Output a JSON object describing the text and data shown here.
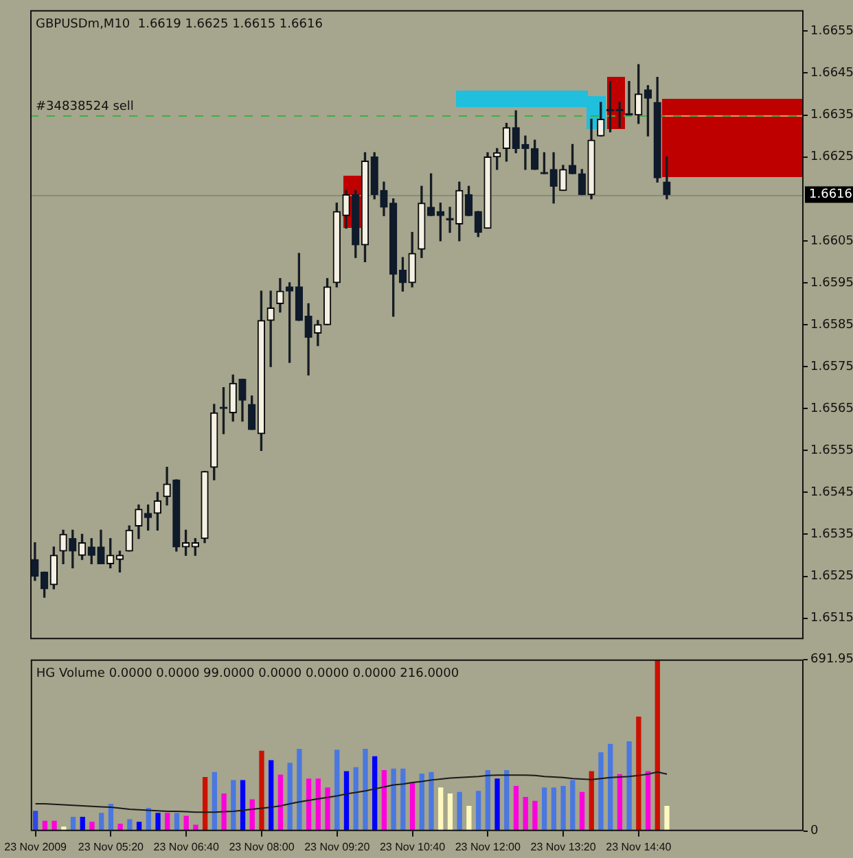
{
  "chart_data": [
    {
      "type": "candlestick",
      "title": "GBPUSDm,M10  1.6619 1.6625 1.6615 1.6616",
      "categories": [
        null,
        null,
        null,
        null,
        null,
        null,
        null,
        null,
        null,
        null,
        null,
        null,
        null,
        null,
        null,
        null,
        null,
        null,
        null,
        null,
        null,
        null,
        null,
        null,
        null,
        null,
        null,
        null,
        null,
        null,
        null,
        null,
        null,
        null,
        null,
        null,
        null,
        null,
        null,
        null,
        null,
        null,
        null,
        null,
        null,
        null,
        null,
        null,
        null,
        null,
        null,
        null,
        null,
        null,
        null,
        null,
        null,
        null,
        null,
        null,
        null,
        null,
        null,
        null,
        null,
        null,
        null,
        null,
        null,
        null,
        null,
        null,
        null,
        null,
        null,
        null,
        null,
        null,
        null,
        null,
        null,
        null
      ],
      "ohlc": [
        [
          1.6529,
          1.6533,
          1.6524,
          1.6525
        ],
        [
          1.6526,
          1.6526,
          1.652,
          1.6522
        ],
        [
          1.6523,
          1.6532,
          1.6522,
          1.653
        ],
        [
          1.6531,
          1.6536,
          1.6528,
          1.6535
        ],
        [
          1.6534,
          1.6536,
          1.6527,
          1.6531
        ],
        [
          1.653,
          1.6535,
          1.6529,
          1.6533
        ],
        [
          1.6532,
          1.6534,
          1.6528,
          1.653
        ],
        [
          1.6532,
          1.6536,
          1.6528,
          1.6528
        ],
        [
          1.6528,
          1.6534,
          1.6527,
          1.653
        ],
        [
          1.6529,
          1.6531,
          1.6526,
          1.653
        ],
        [
          1.6531,
          1.6537,
          1.6531,
          1.6536
        ],
        [
          1.6537,
          1.6542,
          1.6534,
          1.6541
        ],
        [
          1.654,
          1.6542,
          1.6536,
          1.6539
        ],
        [
          1.654,
          1.6545,
          1.6536,
          1.6543
        ],
        [
          1.6544,
          1.6551,
          1.6542,
          1.6547
        ],
        [
          1.6548,
          1.6548,
          1.6531,
          1.6532
        ],
        [
          1.6532,
          1.6536,
          1.653,
          1.6533
        ],
        [
          1.6532,
          1.6534,
          1.653,
          1.6533
        ],
        [
          1.6534,
          1.655,
          1.6533,
          1.655
        ],
        [
          1.6551,
          1.6566,
          1.6548,
          1.6564
        ],
        [
          1.6565,
          1.657,
          1.6559,
          1.6565
        ],
        [
          1.6564,
          1.6573,
          1.6562,
          1.6571
        ],
        [
          1.6572,
          1.6572,
          1.6562,
          1.6567
        ],
        [
          1.6566,
          1.6568,
          1.656,
          1.656
        ],
        [
          1.6559,
          1.6593,
          1.6555,
          1.6586
        ],
        [
          1.6586,
          1.6593,
          1.6575,
          1.6589
        ],
        [
          1.659,
          1.6596,
          1.6588,
          1.6593
        ],
        [
          1.6594,
          1.6595,
          1.6576,
          1.6593
        ],
        [
          1.6594,
          1.6602,
          1.6586,
          1.6586
        ],
        [
          1.6587,
          1.659,
          1.6573,
          1.6582
        ],
        [
          1.6583,
          1.6586,
          1.658,
          1.6585
        ],
        [
          1.6585,
          1.6596,
          1.6585,
          1.6594
        ],
        [
          1.6595,
          1.6614,
          1.6594,
          1.6612
        ],
        [
          1.6611,
          1.6617,
          1.6608,
          1.6616
        ],
        [
          1.6616,
          1.6617,
          1.6601,
          1.6604
        ],
        [
          1.6604,
          1.6626,
          1.66,
          1.6624
        ],
        [
          1.6625,
          1.6626,
          1.6615,
          1.6616
        ],
        [
          1.6617,
          1.6619,
          1.6611,
          1.6613
        ],
        [
          1.6614,
          1.6615,
          1.6587,
          1.6597
        ],
        [
          1.6598,
          1.6601,
          1.6593,
          1.6595
        ],
        [
          1.6595,
          1.6607,
          1.6594,
          1.6602
        ],
        [
          1.6603,
          1.6618,
          1.6601,
          1.6614
        ],
        [
          1.6613,
          1.6621,
          1.6611,
          1.6611
        ],
        [
          1.6612,
          1.6614,
          1.6605,
          1.6611
        ],
        [
          1.661,
          1.6613,
          1.6607,
          1.661
        ],
        [
          1.6609,
          1.6619,
          1.6605,
          1.6617
        ],
        [
          1.6616,
          1.6618,
          1.6611,
          1.6611
        ],
        [
          1.6612,
          1.6612,
          1.6606,
          1.6607
        ],
        [
          1.6608,
          1.6626,
          1.6608,
          1.6625
        ],
        [
          1.6625,
          1.6627,
          1.6622,
          1.6626
        ],
        [
          1.6627,
          1.6633,
          1.6624,
          1.6632
        ],
        [
          1.6632,
          1.6636,
          1.6626,
          1.6627
        ],
        [
          1.6628,
          1.663,
          1.6622,
          1.6627
        ],
        [
          1.6627,
          1.6629,
          1.6622,
          1.6622
        ],
        [
          1.6621,
          1.6626,
          1.6621,
          1.6621
        ],
        [
          1.6622,
          1.6626,
          1.6614,
          1.6618
        ],
        [
          1.6617,
          1.6623,
          1.6617,
          1.6622
        ],
        [
          1.6623,
          1.6628,
          1.6621,
          1.6621
        ],
        [
          1.6621,
          1.6622,
          1.6616,
          1.6616
        ],
        [
          1.6616,
          1.6634,
          1.6615,
          1.6629
        ],
        [
          1.663,
          1.6638,
          1.663,
          1.6634
        ],
        [
          1.6636,
          1.6643,
          1.6631,
          1.6636
        ],
        [
          1.6636,
          1.6638,
          1.6632,
          1.6636
        ],
        [
          1.6635,
          1.6643,
          1.6635,
          1.6635
        ],
        [
          1.6635,
          1.6647,
          1.6633,
          1.664
        ],
        [
          1.6641,
          1.6642,
          1.663,
          1.6639
        ],
        [
          1.6638,
          1.6644,
          1.6619,
          1.662
        ],
        [
          1.6619,
          1.6625,
          1.6615,
          1.6616
        ],
        null,
        null,
        null,
        null,
        null,
        null,
        null,
        null,
        null,
        null,
        null,
        null,
        null,
        null
      ],
      "ylim": [
        1.651,
        1.666
      ],
      "yticks": [
        1.6515,
        1.6525,
        1.6535,
        1.6545,
        1.6555,
        1.6565,
        1.6575,
        1.6585,
        1.6595,
        1.6605,
        1.6625,
        1.6635,
        1.6645,
        1.6655
      ],
      "ref_lines": [
        {
          "axis": "y",
          "value": 1.6635,
          "label": "#34838524 sell",
          "color": "#3cb043",
          "line_style": "dashed"
        },
        {
          "axis": "y",
          "value": 1.6616,
          "label": "1.6616",
          "color": "#7f8f80",
          "line_style": "solid"
        }
      ],
      "tick_labels": "y"
    },
    {
      "type": "bar",
      "title": "HG Volume 0.0000 0.0000 99.0000 0.0000 0.0000 0.0000 216.0000",
      "categories": [
        "23 Nov 2009",
        null,
        null,
        null,
        null,
        null,
        null,
        null,
        "23 Nov 05:20",
        null,
        null,
        null,
        null,
        null,
        null,
        null,
        "23 Nov 06:40",
        null,
        null,
        null,
        null,
        null,
        null,
        null,
        "23 Nov 08:00",
        null,
        null,
        null,
        null,
        null,
        null,
        null,
        "23 Nov 09:20",
        null,
        null,
        null,
        null,
        null,
        null,
        null,
        "23 Nov 10:40",
        null,
        null,
        null,
        null,
        null,
        null,
        null,
        "23 Nov 12:00",
        null,
        null,
        null,
        null,
        null,
        null,
        null,
        "23 Nov 13:20",
        null,
        null,
        null,
        null,
        null,
        null,
        null,
        "23 Nov 14:40",
        null,
        null,
        null,
        null,
        null,
        null,
        null,
        null,
        null,
        null,
        null,
        null,
        null,
        null,
        null,
        null,
        null
      ],
      "series": [
        {
          "type": "bar",
          "values": [
            80,
            40,
            40,
            16,
            56,
            56,
            36,
            72,
            108,
            28,
            46,
            36,
            92,
            72,
            72,
            72,
            60,
            24,
            216,
            236,
            150,
            204,
            204,
            126,
            322,
            284,
            226,
            274,
            330,
            210,
            210,
            174,
            326,
            240,
            256,
            330,
            300,
            244,
            250,
            250,
            194,
            230,
            236,
            174,
            150,
            156,
            100,
            160,
            244,
            210,
            244,
            180,
            136,
            120,
            174,
            174,
            180,
            204,
            156,
            240,
            316,
            350,
            228,
            360,
            460,
            240,
            690,
            100,
            null,
            null,
            null,
            null,
            null,
            null,
            null,
            null,
            null,
            null,
            null,
            null,
            null,
            null
          ],
          "colors": [
            "#2f48e8",
            "#ff00dd",
            "#ff00dd",
            "#fff8c0",
            "#4a78e0",
            "#0000ff",
            "#ff00dd",
            "#4a78e0",
            "#4a78e0",
            "#ff00dd",
            "#4a78e0",
            "#0000ff",
            "#4a78e0",
            "#0000ff",
            "#ff00dd",
            "#4a78e0",
            "#ff00dd",
            "#ff00dd",
            "#cc1100",
            "#4a78e0",
            "#ff00dd",
            "#4a78e0",
            "#0000ff",
            "#ff00dd",
            "#cc1100",
            "#0000ff",
            "#ff00dd",
            "#4a78e0",
            "#4a78e0",
            "#ff00dd",
            "#ff00dd",
            "#ff00dd",
            "#4a78e0",
            "#0000ff",
            "#4a78e0",
            "#4a78e0",
            "#0000ff",
            "#ff00dd",
            "#4a78e0",
            "#4a78e0",
            "#ff00dd",
            "#4a78e0",
            "#4a78e0",
            "#fff8c0",
            "#fff8c0",
            "#4a78e0",
            "#fff8c0",
            "#4a78e0",
            "#4a78e0",
            "#0000ff",
            "#4a78e0",
            "#ff00dd",
            "#ff00dd",
            "#ff00dd",
            "#4a78e0",
            "#4a78e0",
            "#4a78e0",
            "#4a78e0",
            "#ff00dd",
            "#cc1100",
            "#4a78e0",
            "#4a78e0",
            "#ff00dd",
            "#4a78e0",
            "#cc1100",
            "#ff00dd",
            "#cc1100",
            "#fff8c0",
            "#4a78e0",
            "#4a78e0",
            "#4a78e0",
            "#4a78e0",
            "#4a78e0",
            "#4a78e0",
            "#4a78e0",
            "#4a78e0",
            "#4a78e0",
            "#4a78e0",
            "#4a78e0",
            "#4a78e0",
            "#4a78e0",
            "#4a78e0"
          ]
        },
        {
          "type": "line",
          "color": "#1a1a1a",
          "values": [
            110,
            110,
            108,
            106,
            104,
            102,
            100,
            98,
            96,
            92,
            88,
            86,
            84,
            82,
            80,
            80,
            78,
            76,
            76,
            76,
            78,
            80,
            84,
            88,
            92,
            96,
            102,
            110,
            118,
            124,
            130,
            136,
            142,
            150,
            156,
            162,
            170,
            178,
            186,
            190,
            196,
            200,
            206,
            210,
            214,
            216,
            218,
            220,
            224,
            226,
            226,
            226,
            226,
            224,
            220,
            218,
            216,
            212,
            210,
            208,
            212,
            216,
            218,
            220,
            224,
            230,
            238,
            230,
            null,
            null,
            null,
            null,
            null,
            null,
            null,
            null,
            null,
            null,
            null,
            null,
            null,
            null
          ]
        }
      ],
      "ylim": [
        0,
        691.95
      ],
      "yticks": [
        0,
        691.95
      ]
    }
  ]
}
